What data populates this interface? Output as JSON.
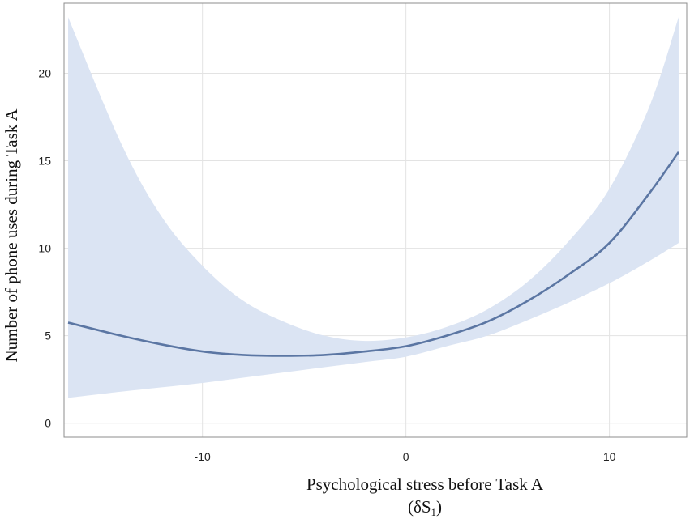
{
  "chart_data": {
    "type": "line",
    "title": "",
    "xlabel": "Psychological stress before Task A",
    "xlabel_sub": {
      "prefix": "(δS",
      "subscript": "1",
      "suffix": ")"
    },
    "ylabel": "Number of phone uses during Task A",
    "xlim": [
      -16.8,
      13.8
    ],
    "ylim": [
      -0.8,
      24
    ],
    "x_ticks": [
      -10,
      0,
      10
    ],
    "y_ticks": [
      0,
      5,
      10,
      15,
      20
    ],
    "grid": true,
    "legend": "none",
    "colors": {
      "line": "#5b76a3",
      "band": "#dbe4f3",
      "grid": "#e3e3e3",
      "frame": "#8c8c8c"
    },
    "series": [
      {
        "x": [
          -16.6,
          -14,
          -12,
          -10,
          -8,
          -6,
          -4,
          -2,
          0,
          2,
          4,
          6,
          8,
          10,
          12,
          13.4
        ],
        "values": [
          5.75,
          5.0,
          4.5,
          4.1,
          3.9,
          3.85,
          3.9,
          4.1,
          4.4,
          5.0,
          5.8,
          7.0,
          8.5,
          10.3,
          13.2,
          15.5
        ],
        "lower": [
          1.45,
          1.8,
          2.05,
          2.3,
          2.6,
          2.9,
          3.2,
          3.5,
          3.8,
          4.4,
          5.0,
          5.9,
          6.9,
          8.0,
          9.3,
          10.3
        ],
        "upper": [
          23.2,
          16.0,
          11.8,
          9.0,
          7.0,
          5.8,
          5.0,
          4.7,
          4.9,
          5.5,
          6.5,
          8.1,
          10.4,
          13.4,
          18.2,
          23.2
        ]
      }
    ]
  }
}
